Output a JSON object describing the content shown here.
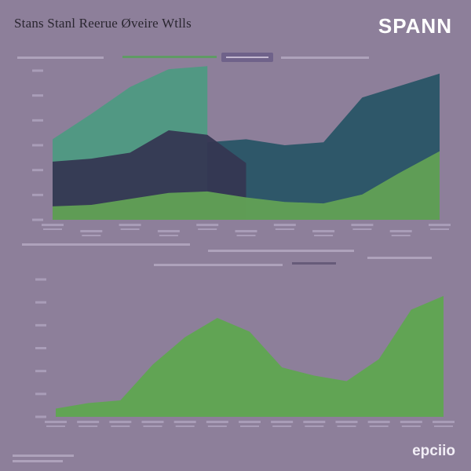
{
  "header": {
    "title": "Stans Stanl Reerue Øveire Wtlls",
    "brand": "SPANN"
  },
  "footer": {
    "logo": "epciio"
  },
  "colors": {
    "background": "#8d7f9a",
    "teal": "#4e9a82",
    "navy": "#353752",
    "green": "#62a155",
    "slate": "#295566",
    "green_bright": "#5fa750"
  },
  "chart_data": [
    {
      "type": "area",
      "stacked": false,
      "x": [
        0,
        1,
        2,
        3,
        4,
        5,
        6,
        7,
        8,
        9,
        10
      ],
      "series": [
        {
          "color": "#4e9a82",
          "values": [
            5.4,
            7.1,
            8.9,
            10.1,
            10.3,
            0,
            0,
            0,
            0,
            0,
            0
          ]
        },
        {
          "color": "#295566",
          "values": [
            0,
            0,
            0,
            0,
            5.2,
            5.4,
            5.0,
            5.2,
            8.2,
            9.0,
            9.8
          ]
        },
        {
          "color": "#353752",
          "values": [
            3.9,
            4.1,
            4.5,
            6.0,
            5.7,
            3.8,
            0,
            0,
            0,
            0,
            0
          ]
        },
        {
          "color": "#62a155",
          "values": [
            0.9,
            1.0,
            1.4,
            1.8,
            1.9,
            1.5,
            1.2,
            1.1,
            1.7,
            3.2,
            4.6
          ]
        }
      ],
      "ylim": [
        0,
        10
      ],
      "grid": false,
      "legend": "top"
    },
    {
      "type": "area",
      "x": [
        0,
        1,
        2,
        3,
        4,
        5,
        6,
        7,
        8,
        9,
        10,
        11,
        12
      ],
      "series": [
        {
          "color": "#5fa750",
          "values": [
            0.3,
            0.5,
            0.6,
            1.9,
            2.9,
            3.6,
            3.1,
            1.8,
            1.5,
            1.3,
            2.1,
            3.9,
            4.4
          ]
        }
      ],
      "ylim": [
        0,
        5
      ],
      "grid": false,
      "legend": "none"
    }
  ]
}
